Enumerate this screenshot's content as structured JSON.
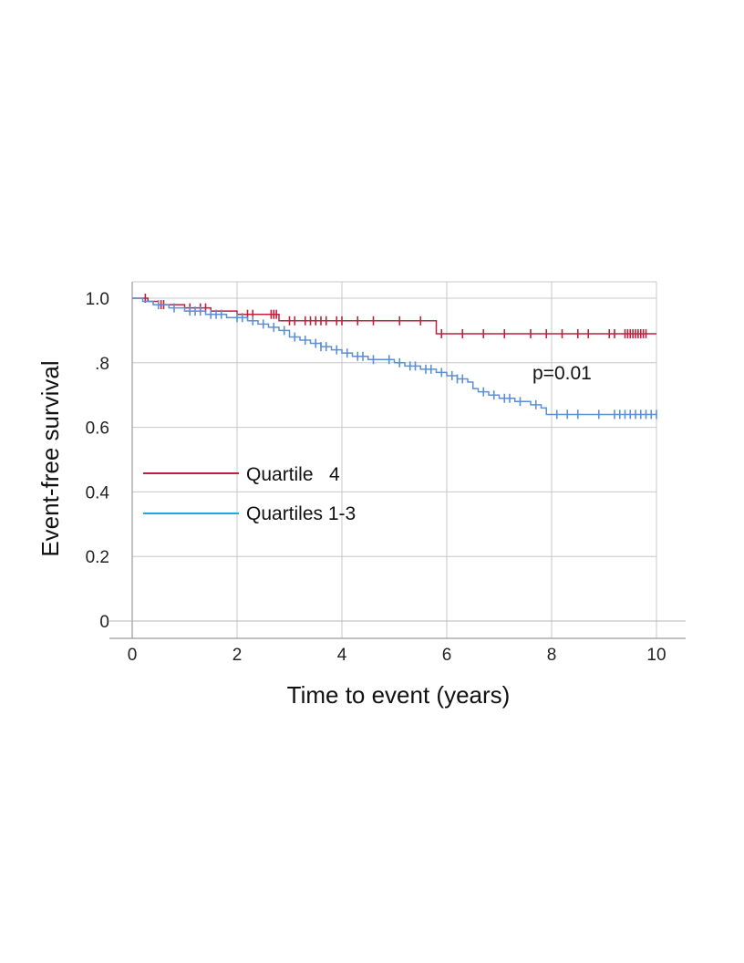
{
  "chart_data": {
    "type": "line",
    "subtype": "kaplan-meier step",
    "xlabel": "Time to event (years)",
    "ylabel": "Event-free survival",
    "xlim": [
      0,
      10
    ],
    "ylim": [
      0,
      1.0
    ],
    "x_ticks": [
      0,
      2,
      4,
      6,
      8,
      10
    ],
    "x_tick_labels": [
      "0",
      "2",
      "4",
      "6",
      "8",
      "10"
    ],
    "y_ticks": [
      0,
      0.2,
      0.4,
      0.6,
      0.8,
      1.0
    ],
    "y_tick_labels": [
      "0",
      "0.2",
      "0.4",
      "0.6",
      ".8",
      "1.0"
    ],
    "grid": true,
    "annotation": "p=0.01",
    "legend_position": "center-left",
    "series": [
      {
        "name": "Quartile   4",
        "legend_color": "#c0203c",
        "color": "#c0203c",
        "steps": [
          [
            0,
            1.0
          ],
          [
            0.3,
            0.99
          ],
          [
            0.5,
            0.98
          ],
          [
            1.0,
            0.97
          ],
          [
            1.5,
            0.96
          ],
          [
            2.0,
            0.95
          ],
          [
            2.8,
            0.93
          ],
          [
            5.8,
            0.89
          ],
          [
            10,
            0.89
          ]
        ],
        "censored_x": [
          0.25,
          0.55,
          0.6,
          1.1,
          1.3,
          1.4,
          2.2,
          2.3,
          2.65,
          2.7,
          2.75,
          3.0,
          3.1,
          3.3,
          3.4,
          3.5,
          3.6,
          3.7,
          3.9,
          4.0,
          4.3,
          4.6,
          5.1,
          5.5,
          5.9,
          6.3,
          6.7,
          7.1,
          7.6,
          7.9,
          8.2,
          8.5,
          8.7,
          9.1,
          9.2,
          9.4,
          9.45,
          9.5,
          9.55,
          9.6,
          9.65,
          9.7,
          9.75,
          9.8
        ]
      },
      {
        "name": "Quartiles 1-3",
        "legend_color": "#1ea8e0",
        "color": "#5b8fd6",
        "steps": [
          [
            0,
            1.0
          ],
          [
            0.2,
            0.99
          ],
          [
            0.4,
            0.98
          ],
          [
            0.7,
            0.97
          ],
          [
            1.0,
            0.96
          ],
          [
            1.4,
            0.95
          ],
          [
            1.8,
            0.94
          ],
          [
            2.2,
            0.93
          ],
          [
            2.4,
            0.92
          ],
          [
            2.6,
            0.91
          ],
          [
            2.8,
            0.9
          ],
          [
            3.0,
            0.88
          ],
          [
            3.2,
            0.87
          ],
          [
            3.4,
            0.86
          ],
          [
            3.6,
            0.85
          ],
          [
            3.8,
            0.84
          ],
          [
            4.0,
            0.83
          ],
          [
            4.2,
            0.82
          ],
          [
            4.5,
            0.81
          ],
          [
            4.8,
            0.81
          ],
          [
            5.0,
            0.8
          ],
          [
            5.2,
            0.79
          ],
          [
            5.5,
            0.78
          ],
          [
            5.8,
            0.77
          ],
          [
            6.0,
            0.76
          ],
          [
            6.2,
            0.75
          ],
          [
            6.4,
            0.74
          ],
          [
            6.5,
            0.72
          ],
          [
            6.6,
            0.71
          ],
          [
            6.8,
            0.7
          ],
          [
            7.0,
            0.69
          ],
          [
            7.3,
            0.68
          ],
          [
            7.6,
            0.67
          ],
          [
            7.8,
            0.66
          ],
          [
            7.9,
            0.64
          ],
          [
            10,
            0.64
          ]
        ],
        "censored_x": [
          0.5,
          0.8,
          1.1,
          1.2,
          1.3,
          1.5,
          1.6,
          1.7,
          2.0,
          2.1,
          2.3,
          2.5,
          2.7,
          2.9,
          3.1,
          3.3,
          3.5,
          3.6,
          3.7,
          3.9,
          4.1,
          4.3,
          4.4,
          4.6,
          4.9,
          5.1,
          5.3,
          5.4,
          5.6,
          5.7,
          5.9,
          6.1,
          6.2,
          6.3,
          6.7,
          6.9,
          7.1,
          7.2,
          7.4,
          7.7,
          8.1,
          8.3,
          8.5,
          8.9,
          9.2,
          9.3,
          9.4,
          9.5,
          9.6,
          9.7,
          9.8,
          9.9,
          10.0
        ]
      }
    ]
  }
}
